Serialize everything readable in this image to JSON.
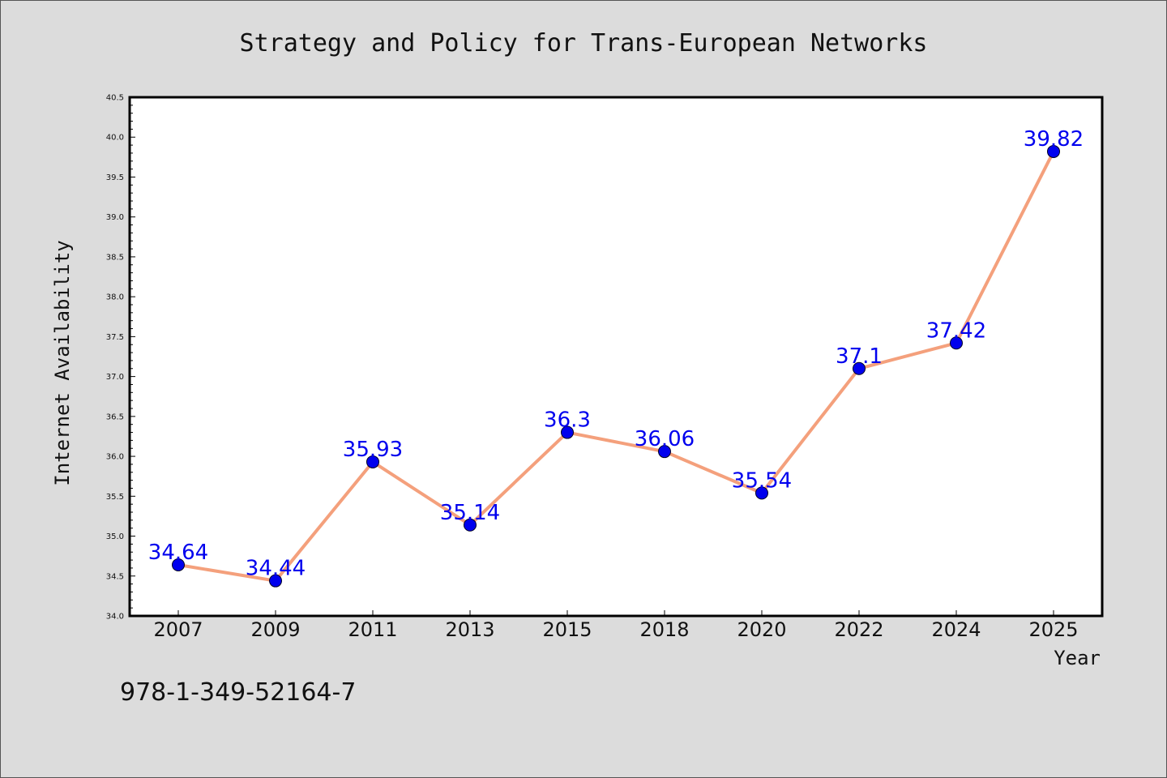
{
  "chart_data": {
    "type": "line",
    "title": "Strategy and Policy for Trans-European Networks",
    "xlabel": "Year",
    "ylabel": "Internet Availability",
    "categories": [
      "2007",
      "2009",
      "2011",
      "2013",
      "2015",
      "2018",
      "2020",
      "2022",
      "2024",
      "2025"
    ],
    "series": [
      {
        "values": [
          34.64,
          34.44,
          35.93,
          35.14,
          36.3,
          36.06,
          35.54,
          37.1,
          37.42,
          39.82
        ],
        "color": "#f4a07c",
        "marker_color": "#0000ee"
      }
    ],
    "data_labels": [
      "34.64",
      "34.44",
      "35.93",
      "35.14",
      "36.3",
      "36.06",
      "35.54",
      "37.1",
      "37.42",
      "39.82"
    ],
    "yticks": [
      "34.0",
      "34.5",
      "35.0",
      "35.5",
      "36.0",
      "36.5",
      "37.0",
      "37.5",
      "38.0",
      "38.5",
      "39.0",
      "39.5",
      "40.0",
      "40.5"
    ],
    "ylim": [
      34.0,
      40.5
    ],
    "grid": false,
    "label_color": "#0000ee"
  },
  "footer": {
    "isbn": "978-1-349-52164-7"
  }
}
